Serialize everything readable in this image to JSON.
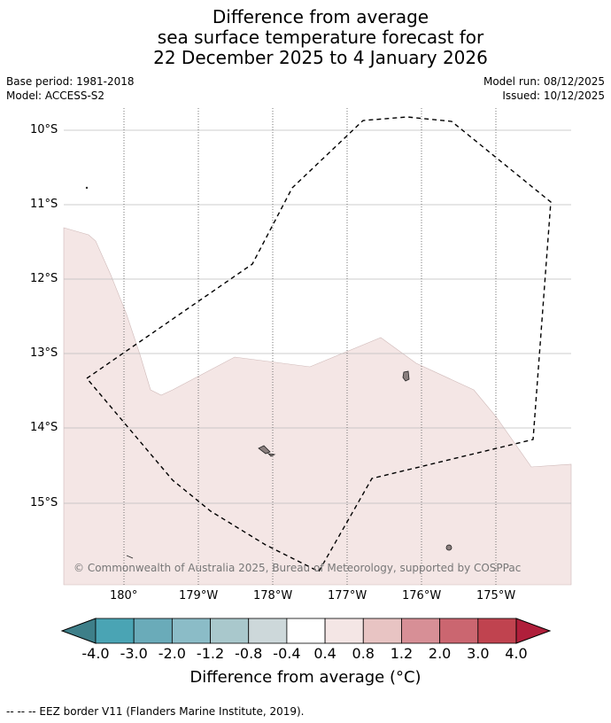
{
  "title": {
    "line1": "Difference from average",
    "line2": "sea surface temperature forecast for",
    "line3": "22 December 2025 to 4 January 2026"
  },
  "meta": {
    "base_period": "Base period: 1981-2018",
    "model": "Model: ACCESS-S2",
    "model_run": "Model run: 08/12/2025",
    "issued": "Issued: 10/12/2025"
  },
  "map": {
    "lat_labels": [
      "10°S",
      "11°S",
      "12°S",
      "13°S",
      "14°S",
      "15°S"
    ],
    "lon_labels": [
      "180°",
      "179°W",
      "178°W",
      "177°W",
      "176°W",
      "175°W"
    ],
    "copyright": "© Commonwealth of Australia 2025, Bureau of Meteorology, supported by COSPPac",
    "anomaly_fill_color": "#f4e6e5",
    "ocean_color": "#ffffff",
    "eez_border_style": "dashed black"
  },
  "colorbar": {
    "ticks": [
      "-4.0",
      "-3.0",
      "-2.0",
      "-1.2",
      "-0.8",
      "-0.4",
      "0.4",
      "0.8",
      "1.2",
      "2.0",
      "3.0",
      "4.0"
    ],
    "colors": [
      "#3e7f89",
      "#4aa4b4",
      "#6aabb9",
      "#8bbcc7",
      "#a9c8cc",
      "#cdd8da",
      "#ffffff",
      "#f4e6e5",
      "#e8c4c3",
      "#d78f96",
      "#cb6670",
      "#c0434f",
      "#b01f3b"
    ],
    "label": "Difference from average (°C)"
  },
  "footnote": "-- -- -- EEZ border V11 (Flanders Marine Institute, 2019)."
}
